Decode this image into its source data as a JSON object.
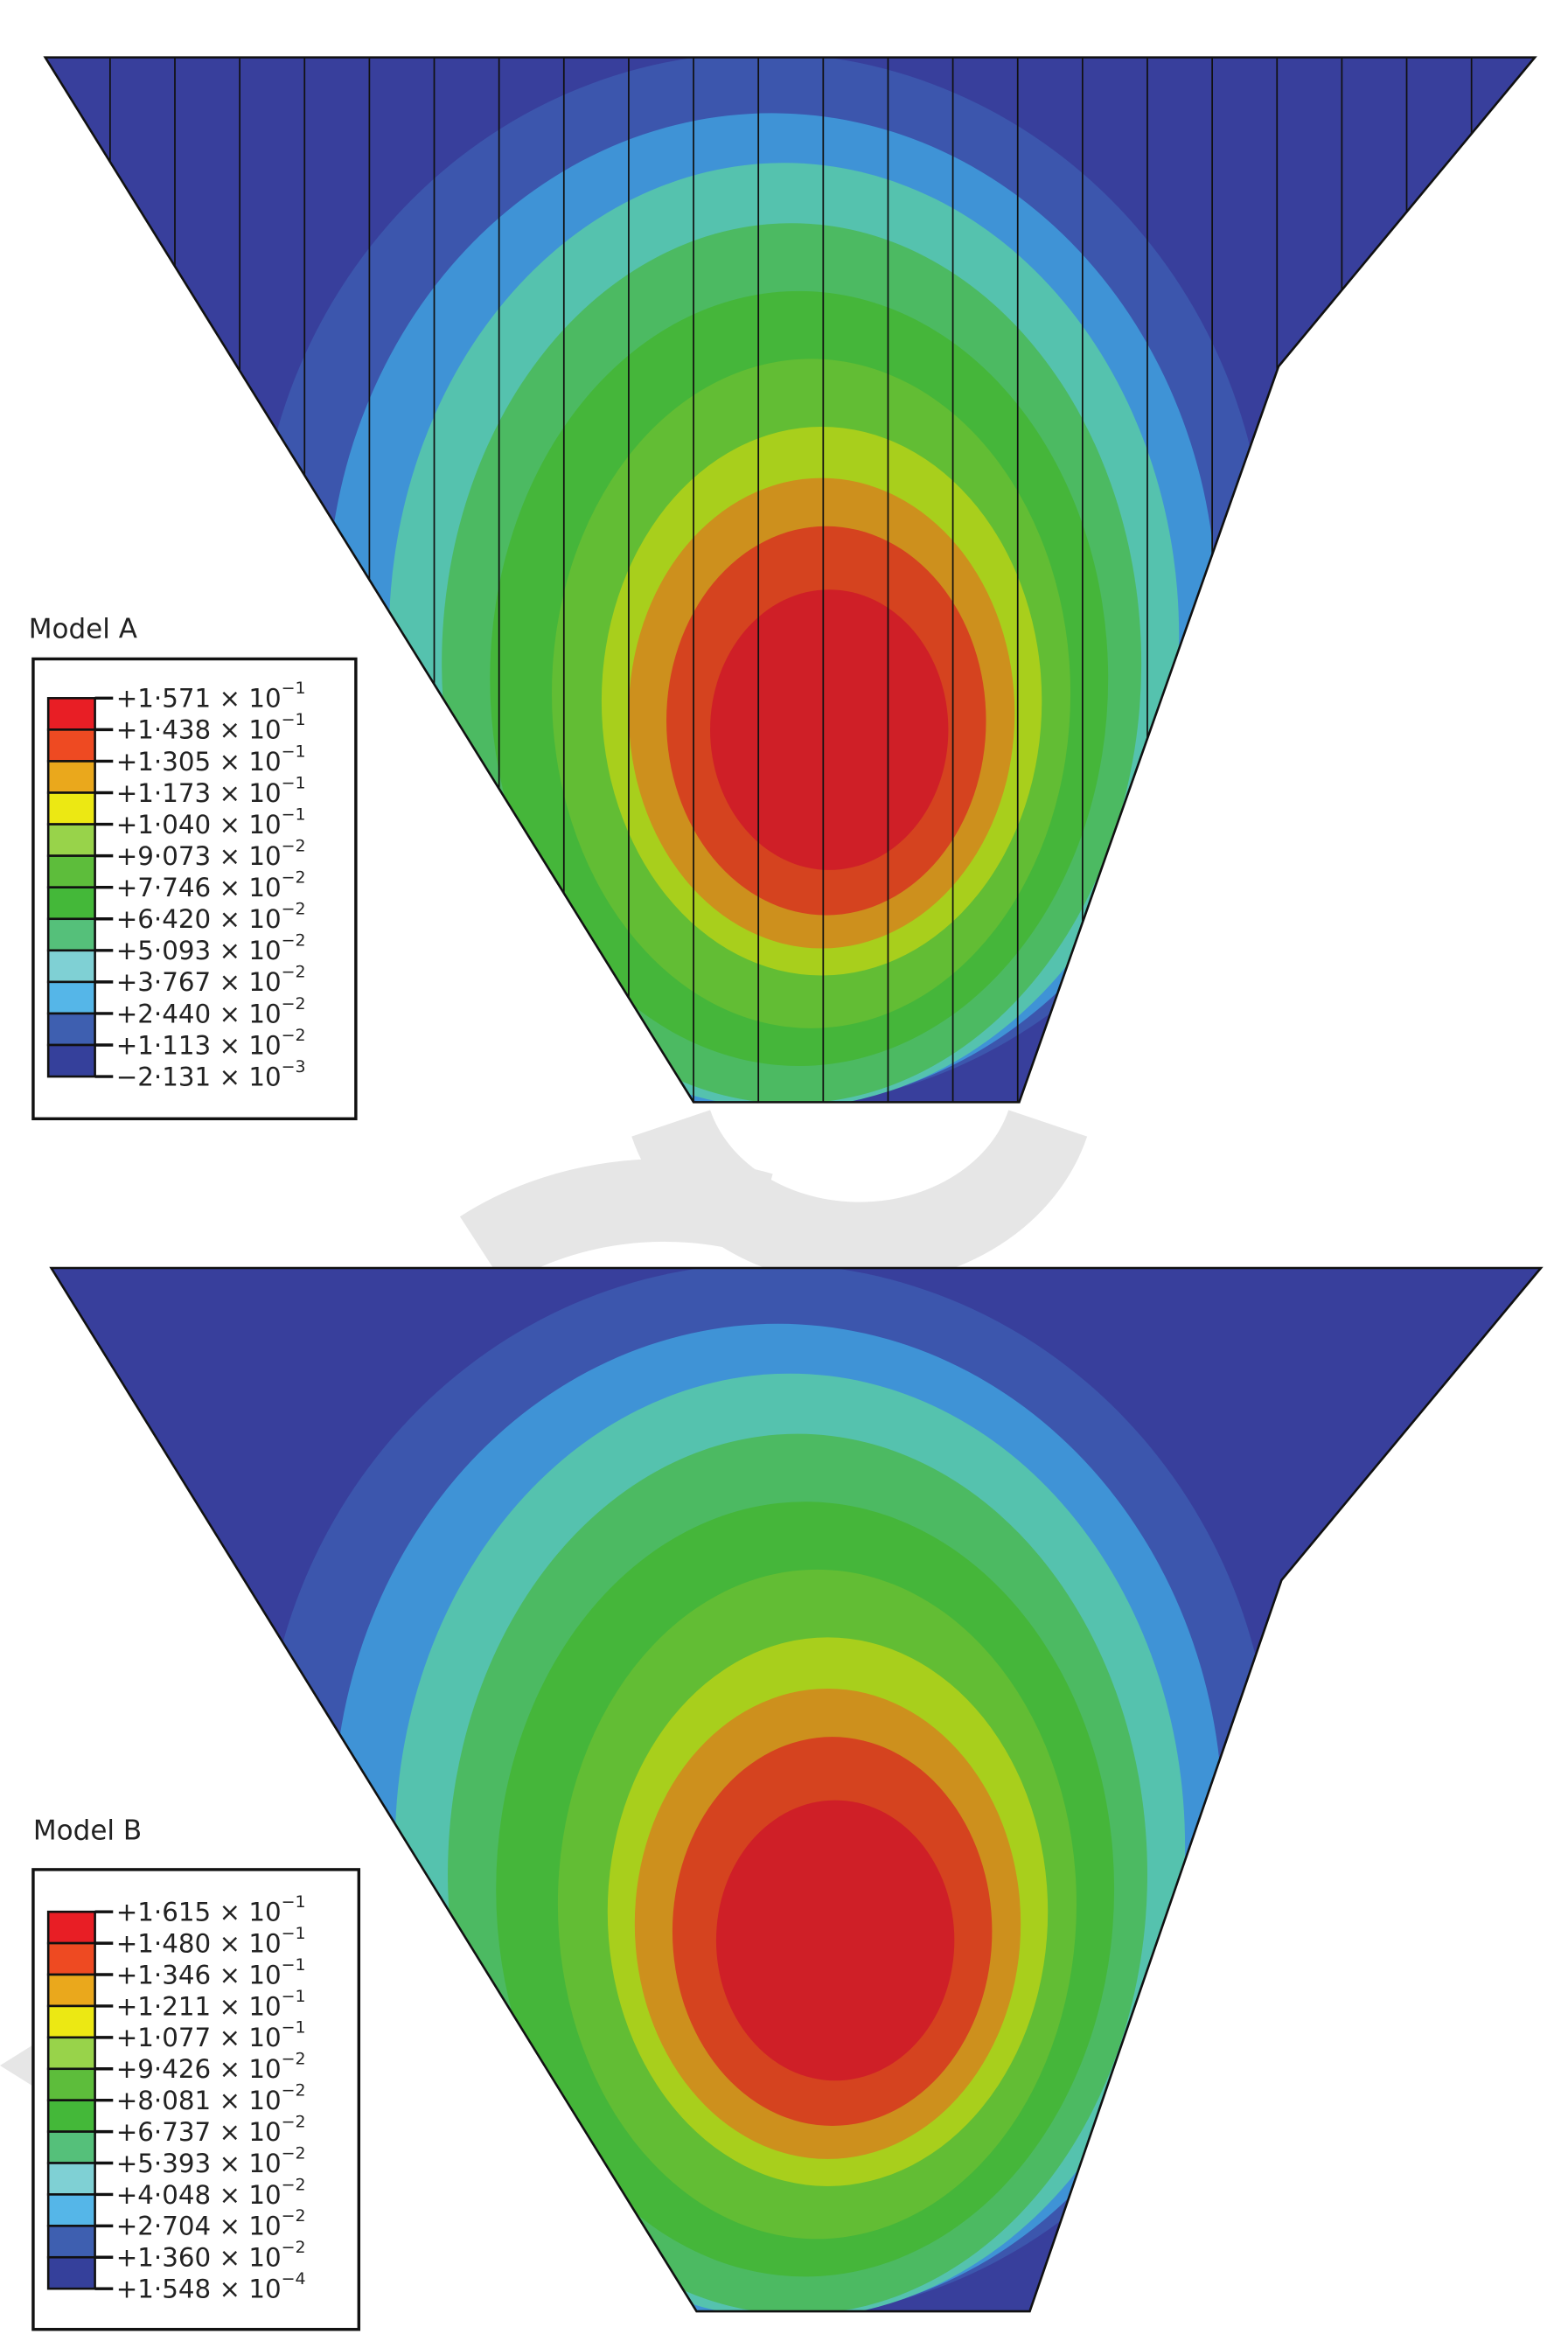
{
  "colors": {
    "background_band": "#383f9c",
    "bands": [
      "#3c56ad",
      "#3f93d6",
      "#55c2ae",
      "#4cba62",
      "#45b63a",
      "#62bd34",
      "#a8cf1c",
      "#cd901d",
      "#d5431f",
      "#cf1f27"
    ],
    "legend_bands": [
      "#e81e25",
      "#ee4a22",
      "#eaa81c",
      "#ece813",
      "#98d34a",
      "#5dbd3b",
      "#44b839",
      "#55c07a",
      "#7fd0d4",
      "#55b6e8",
      "#3e5fb0",
      "#35409b"
    ],
    "mesh_lines": "#111111",
    "watermark": "#e6e6e6"
  },
  "models": [
    {
      "title": "Model A",
      "multiplier_text": "× 10",
      "legend": [
        {
          "value": "+1·571",
          "exponent": "−1"
        },
        {
          "value": "+1·438",
          "exponent": "−1"
        },
        {
          "value": "+1·305",
          "exponent": "−1"
        },
        {
          "value": "+1·173",
          "exponent": "−1"
        },
        {
          "value": "+1·040",
          "exponent": "−1"
        },
        {
          "value": "+9·073",
          "exponent": "−2"
        },
        {
          "value": "+7·746",
          "exponent": "−2"
        },
        {
          "value": "+6·420",
          "exponent": "−2"
        },
        {
          "value": "+5·093",
          "exponent": "−2"
        },
        {
          "value": "+3·767",
          "exponent": "−2"
        },
        {
          "value": "+2·440",
          "exponent": "−2"
        },
        {
          "value": "+1·113",
          "exponent": "−2"
        },
        {
          "value": "−2·131",
          "exponent": "−3"
        }
      ],
      "mesh_lines_visible": true
    },
    {
      "title": "Model B",
      "multiplier_text": "× 10",
      "legend": [
        {
          "value": "+1·615",
          "exponent": "−1"
        },
        {
          "value": "+1·480",
          "exponent": "−1"
        },
        {
          "value": "+1·346",
          "exponent": "−1"
        },
        {
          "value": "+1·211",
          "exponent": "−1"
        },
        {
          "value": "+1·077",
          "exponent": "−1"
        },
        {
          "value": "+9·426",
          "exponent": "−2"
        },
        {
          "value": "+8·081",
          "exponent": "−2"
        },
        {
          "value": "+6·737",
          "exponent": "−2"
        },
        {
          "value": "+5·393",
          "exponent": "−2"
        },
        {
          "value": "+4·048",
          "exponent": "−2"
        },
        {
          "value": "+2·704",
          "exponent": "−2"
        },
        {
          "value": "+1·360",
          "exponent": "−2"
        },
        {
          "value": "+1·548",
          "exponent": "−4"
        }
      ],
      "mesh_lines_visible": false
    }
  ]
}
